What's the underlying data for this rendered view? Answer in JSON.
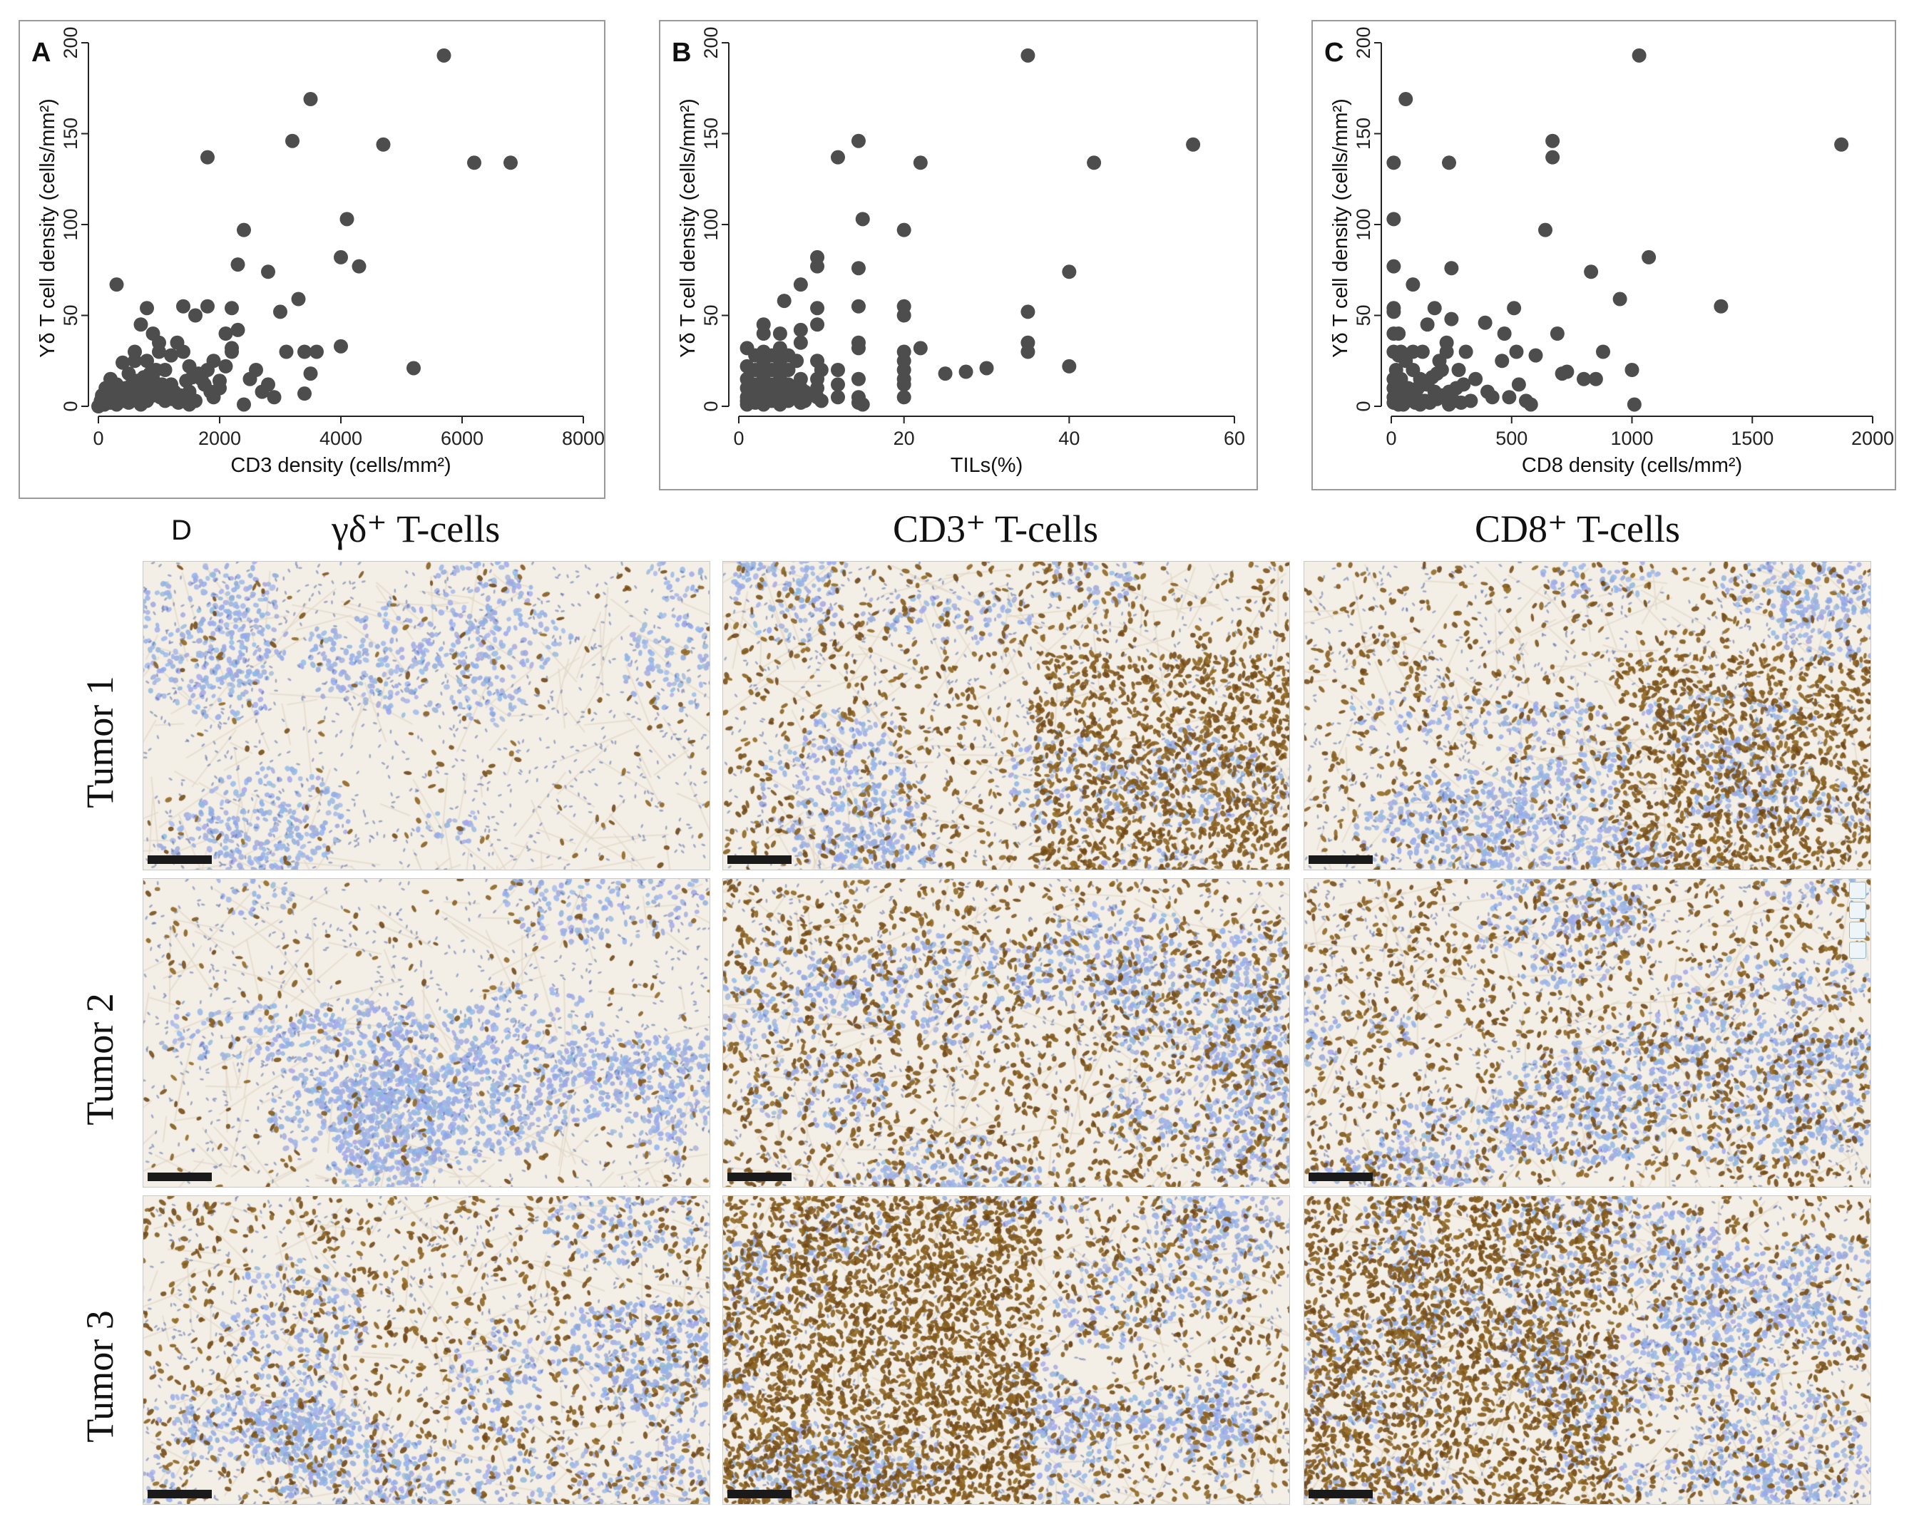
{
  "figure": {
    "panel_letters": [
      "A",
      "B",
      "C"
    ],
    "d_letter": "D",
    "column_headers": [
      "γδ⁺ T-cells",
      "CD3⁺ T-cells",
      "CD8⁺ T-cells"
    ],
    "row_labels": [
      "Tumor 1",
      "Tumor 2",
      "Tumor 3"
    ],
    "colors": {
      "points": "#4d4d4d",
      "brown_stain": "#6b3a12",
      "hematoxylin": "#9fb4dc",
      "stroma": "#f4efe6"
    },
    "micrograph_stain": [
      [
        0.05,
        0.55,
        0.5
      ],
      [
        0.08,
        0.45,
        0.4
      ],
      [
        0.3,
        1.0,
        0.8
      ]
    ]
  },
  "chart_data": [
    {
      "type": "scatter",
      "panel": "A",
      "title": "",
      "xlabel": "CD3 density (cells/mm²)",
      "ylabel": "Yδ T cell density (cells/mm²)",
      "xlim": [
        0,
        8000
      ],
      "ylim": [
        0,
        200
      ],
      "xticks": [
        0,
        2000,
        4000,
        6000,
        8000
      ],
      "yticks": [
        0,
        50,
        100,
        150,
        200
      ],
      "grid": false,
      "points": [
        [
          5700,
          193
        ],
        [
          3500,
          169
        ],
        [
          3200,
          146
        ],
        [
          4700,
          144
        ],
        [
          1800,
          137
        ],
        [
          6200,
          134
        ],
        [
          6800,
          134
        ],
        [
          4100,
          103
        ],
        [
          2400,
          97
        ],
        [
          4000,
          82
        ],
        [
          2300,
          78
        ],
        [
          4300,
          77
        ],
        [
          2800,
          74
        ],
        [
          300,
          67
        ],
        [
          3300,
          59
        ],
        [
          5200,
          21
        ],
        [
          1400,
          55
        ],
        [
          1800,
          55
        ],
        [
          2200,
          54
        ],
        [
          800,
          54
        ],
        [
          3000,
          52
        ],
        [
          1600,
          50
        ],
        [
          700,
          45
        ],
        [
          2300,
          42
        ],
        [
          2100,
          40
        ],
        [
          900,
          40
        ],
        [
          2200,
          32
        ],
        [
          3400,
          30
        ],
        [
          3600,
          30
        ],
        [
          4000,
          33
        ],
        [
          3100,
          30
        ],
        [
          1000,
          30
        ],
        [
          1300,
          35
        ],
        [
          1200,
          28
        ],
        [
          600,
          25
        ],
        [
          2200,
          30
        ],
        [
          1800,
          20
        ],
        [
          2600,
          20
        ],
        [
          1500,
          22
        ],
        [
          800,
          25
        ],
        [
          400,
          24
        ],
        [
          1100,
          20
        ],
        [
          3500,
          18
        ],
        [
          1700,
          15
        ],
        [
          900,
          15
        ],
        [
          500,
          18
        ],
        [
          2800,
          12
        ],
        [
          2000,
          10
        ],
        [
          1200,
          12
        ],
        [
          700,
          10
        ],
        [
          300,
          12
        ],
        [
          1500,
          8
        ],
        [
          1000,
          8
        ],
        [
          600,
          8
        ],
        [
          200,
          8
        ],
        [
          2900,
          5
        ],
        [
          3400,
          7
        ],
        [
          1900,
          5
        ],
        [
          1300,
          5
        ],
        [
          400,
          5
        ],
        [
          800,
          3
        ],
        [
          100,
          4
        ],
        [
          1100,
          3
        ],
        [
          500,
          2
        ],
        [
          200,
          2
        ],
        [
          900,
          6
        ],
        [
          1600,
          3
        ],
        [
          300,
          1
        ],
        [
          100,
          1
        ],
        [
          700,
          1
        ],
        [
          1500,
          1
        ],
        [
          2400,
          1
        ],
        [
          0,
          0
        ],
        [
          50,
          2
        ],
        [
          150,
          3
        ],
        [
          250,
          6
        ],
        [
          350,
          8
        ],
        [
          450,
          10
        ],
        [
          550,
          12
        ],
        [
          650,
          14
        ],
        [
          750,
          16
        ],
        [
          850,
          18
        ],
        [
          950,
          20
        ],
        [
          1050,
          12
        ],
        [
          1150,
          10
        ],
        [
          1250,
          8
        ],
        [
          1350,
          6
        ],
        [
          1450,
          14
        ],
        [
          1550,
          16
        ],
        [
          1650,
          18
        ],
        [
          1750,
          12
        ],
        [
          1850,
          8
        ],
        [
          2000,
          14
        ],
        [
          1400,
          30
        ],
        [
          1000,
          35
        ],
        [
          600,
          30
        ],
        [
          200,
          15
        ],
        [
          120,
          10
        ],
        [
          60,
          6
        ],
        [
          40,
          3
        ],
        [
          180,
          5
        ],
        [
          260,
          3
        ],
        [
          320,
          9
        ],
        [
          420,
          3
        ],
        [
          520,
          6
        ],
        [
          620,
          4
        ],
        [
          720,
          7
        ],
        [
          820,
          9
        ],
        [
          920,
          11
        ],
        [
          1020,
          5
        ],
        [
          1120,
          7
        ],
        [
          1220,
          4
        ],
        [
          1320,
          2
        ],
        [
          2500,
          15
        ],
        [
          2700,
          8
        ],
        [
          2100,
          22
        ],
        [
          1900,
          25
        ]
      ]
    },
    {
      "type": "scatter",
      "panel": "B",
      "title": "",
      "xlabel": "TILs(%)",
      "ylabel": "Yδ T cell density (cells/mm²)",
      "xlim": [
        0,
        60
      ],
      "ylim": [
        0,
        200
      ],
      "xticks": [
        0,
        20,
        40,
        60
      ],
      "yticks": [
        0,
        50,
        100,
        150,
        200
      ],
      "grid": false,
      "points": [
        [
          35,
          193
        ],
        [
          55,
          144
        ],
        [
          14.5,
          146
        ],
        [
          12,
          137
        ],
        [
          22,
          134
        ],
        [
          43,
          134
        ],
        [
          15,
          103
        ],
        [
          20,
          97
        ],
        [
          9.5,
          82
        ],
        [
          9.5,
          77
        ],
        [
          14.5,
          76
        ],
        [
          40,
          74
        ],
        [
          7.5,
          67
        ],
        [
          5.5,
          58
        ],
        [
          20,
          55
        ],
        [
          14.5,
          55
        ],
        [
          9.5,
          54
        ],
        [
          35,
          52
        ],
        [
          20,
          50
        ],
        [
          3,
          45
        ],
        [
          7.5,
          42
        ],
        [
          9.5,
          45
        ],
        [
          3,
          40
        ],
        [
          5,
          40
        ],
        [
          14.5,
          35
        ],
        [
          14.5,
          32
        ],
        [
          20,
          30
        ],
        [
          35,
          30
        ],
        [
          22,
          32
        ],
        [
          5,
          32
        ],
        [
          3,
          30
        ],
        [
          7.5,
          35
        ],
        [
          1,
          32
        ],
        [
          9.5,
          25
        ],
        [
          3,
          25
        ],
        [
          5,
          25
        ],
        [
          40,
          22
        ],
        [
          30,
          21
        ],
        [
          27.5,
          19
        ],
        [
          25,
          18
        ],
        [
          20,
          20
        ],
        [
          10,
          20
        ],
        [
          7.5,
          15
        ],
        [
          5,
          15
        ],
        [
          3,
          15
        ],
        [
          1,
          15
        ],
        [
          20,
          12
        ],
        [
          12,
          12
        ],
        [
          9.5,
          10
        ],
        [
          7.5,
          10
        ],
        [
          5,
          10
        ],
        [
          3,
          10
        ],
        [
          1,
          10
        ],
        [
          20,
          5
        ],
        [
          14.5,
          5
        ],
        [
          12,
          5
        ],
        [
          9.5,
          5
        ],
        [
          7.5,
          5
        ],
        [
          5,
          5
        ],
        [
          3,
          5
        ],
        [
          2,
          5
        ],
        [
          1,
          5
        ],
        [
          15,
          1
        ],
        [
          14.5,
          2
        ],
        [
          7.5,
          2
        ],
        [
          5,
          1
        ],
        [
          3,
          1
        ],
        [
          1,
          1
        ],
        [
          2,
          2
        ],
        [
          4,
          3
        ],
        [
          6,
          3
        ],
        [
          8,
          3
        ],
        [
          10,
          3
        ],
        [
          1,
          3
        ],
        [
          2,
          8
        ],
        [
          4,
          8
        ],
        [
          6,
          8
        ],
        [
          8,
          8
        ],
        [
          4,
          12
        ],
        [
          6,
          12
        ],
        [
          2,
          12
        ],
        [
          2,
          20
        ],
        [
          4,
          20
        ],
        [
          6,
          20
        ],
        [
          4,
          28
        ],
        [
          6,
          28
        ],
        [
          2,
          28
        ],
        [
          1,
          22
        ],
        [
          3,
          18
        ],
        [
          5,
          22
        ],
        [
          7,
          25
        ],
        [
          9.5,
          15
        ],
        [
          12,
          20
        ],
        [
          14.5,
          15
        ],
        [
          20,
          15
        ],
        [
          20,
          25
        ],
        [
          35,
          35
        ]
      ]
    },
    {
      "type": "scatter",
      "panel": "C",
      "title": "",
      "xlabel": "CD8 density (cells/mm²)",
      "ylabel": "Yδ T cell density (cells/mm²)",
      "xlim": [
        0,
        2000
      ],
      "ylim": [
        0,
        200
      ],
      "xticks": [
        0,
        500,
        1000,
        1500,
        2000
      ],
      "yticks": [
        0,
        50,
        100,
        150,
        200
      ],
      "grid": false,
      "points": [
        [
          1030,
          193
        ],
        [
          1870,
          144
        ],
        [
          670,
          146
        ],
        [
          670,
          137
        ],
        [
          60,
          169
        ],
        [
          10,
          134
        ],
        [
          240,
          134
        ],
        [
          10,
          103
        ],
        [
          640,
          97
        ],
        [
          1070,
          82
        ],
        [
          10,
          77
        ],
        [
          250,
          76
        ],
        [
          830,
          74
        ],
        [
          90,
          67
        ],
        [
          950,
          59
        ],
        [
          1370,
          55
        ],
        [
          10,
          54
        ],
        [
          180,
          54
        ],
        [
          510,
          54
        ],
        [
          10,
          52
        ],
        [
          250,
          48
        ],
        [
          10,
          40
        ],
        [
          30,
          40
        ],
        [
          690,
          40
        ],
        [
          150,
          45
        ],
        [
          390,
          46
        ],
        [
          470,
          40
        ],
        [
          880,
          30
        ],
        [
          230,
          35
        ],
        [
          230,
          30
        ],
        [
          310,
          30
        ],
        [
          130,
          30
        ],
        [
          40,
          30
        ],
        [
          90,
          30
        ],
        [
          520,
          30
        ],
        [
          600,
          28
        ],
        [
          460,
          25
        ],
        [
          1000,
          20
        ],
        [
          730,
          19
        ],
        [
          710,
          18
        ],
        [
          800,
          15
        ],
        [
          850,
          15
        ],
        [
          1010,
          1
        ],
        [
          400,
          8
        ],
        [
          530,
          12
        ],
        [
          560,
          3
        ],
        [
          490,
          5
        ],
        [
          420,
          5
        ],
        [
          330,
          3
        ],
        [
          290,
          2
        ],
        [
          260,
          3
        ],
        [
          220,
          5
        ],
        [
          180,
          8
        ],
        [
          150,
          12
        ],
        [
          120,
          15
        ],
        [
          90,
          20
        ],
        [
          60,
          25
        ],
        [
          30,
          28
        ],
        [
          10,
          30
        ],
        [
          20,
          20
        ],
        [
          40,
          15
        ],
        [
          70,
          10
        ],
        [
          100,
          5
        ],
        [
          130,
          3
        ],
        [
          160,
          2
        ],
        [
          190,
          4
        ],
        [
          210,
          6
        ],
        [
          240,
          8
        ],
        [
          270,
          10
        ],
        [
          300,
          12
        ],
        [
          10,
          10
        ],
        [
          10,
          5
        ],
        [
          10,
          2
        ],
        [
          30,
          3
        ],
        [
          50,
          4
        ],
        [
          70,
          6
        ],
        [
          90,
          8
        ],
        [
          110,
          10
        ],
        [
          130,
          12
        ],
        [
          150,
          14
        ],
        [
          170,
          16
        ],
        [
          190,
          18
        ],
        [
          210,
          20
        ],
        [
          20,
          12
        ],
        [
          40,
          8
        ],
        [
          60,
          6
        ],
        [
          80,
          4
        ],
        [
          100,
          2
        ],
        [
          120,
          1
        ],
        [
          140,
          3
        ],
        [
          30,
          1
        ],
        [
          50,
          1
        ],
        [
          10,
          15
        ],
        [
          200,
          25
        ],
        [
          280,
          20
        ],
        [
          350,
          15
        ],
        [
          580,
          1
        ],
        [
          240,
          1
        ]
      ]
    }
  ]
}
